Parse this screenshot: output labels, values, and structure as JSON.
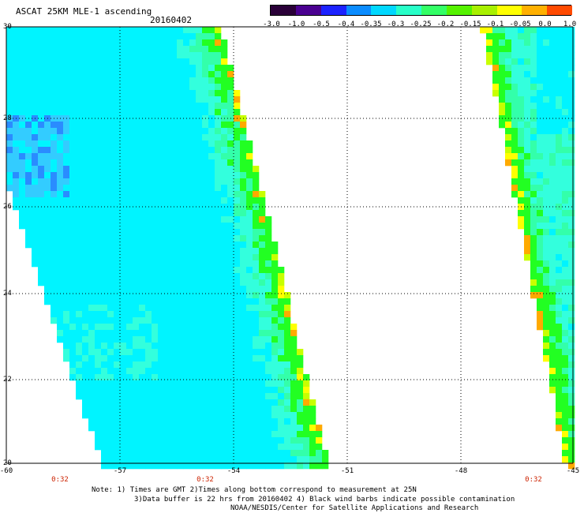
{
  "header": {
    "title": "ASCAT 25KM MLE-1 ascending",
    "date": "20160402"
  },
  "colorbar": {
    "labels": [
      "-3.0",
      "-1.0",
      "-0.5",
      "-0.4",
      "-0.35",
      "-0.3",
      "-0.25",
      "-0.2",
      "-0.15",
      "-0.1",
      "-0.05",
      "0.0",
      "1.0"
    ],
    "colors": [
      "#2a0038",
      "#4a0090",
      "#1c22ff",
      "#0b8cff",
      "#00d8ff",
      "#28ffc8",
      "#33ff66",
      "#55f200",
      "#a8f000",
      "#ffff00",
      "#ffb000",
      "#ff4a00"
    ]
  },
  "map": {
    "lat_labels": [
      "20",
      "22",
      "24",
      "26",
      "28",
      "30"
    ],
    "lon_labels": [
      "-60",
      "-57",
      "-54",
      "-51",
      "-48",
      "-45"
    ],
    "pass_times": [
      "0:32",
      "0:32",
      "0:32"
    ]
  },
  "notes": {
    "line1": "Note: 1) Times are GMT 2)Times along bottom correspond to measurement at 25N",
    "line2": "3)Data buffer is 22 hrs from 20160402 4) Black wind barbs indicate possible contamination",
    "line3": "NOAA/NESDIS/Center for Satellite Applications and Research"
  },
  "palette": {
    "blue": "#2a8cff",
    "light_blue": "#33ccff",
    "cyan": "#00f4ff",
    "aqua": "#33ffdd",
    "teal_green": "#33ffaa",
    "green": "#22ff22",
    "yellow_green": "#c8ff00",
    "yellow": "#ffff00",
    "orange": "#ffaa00"
  }
}
